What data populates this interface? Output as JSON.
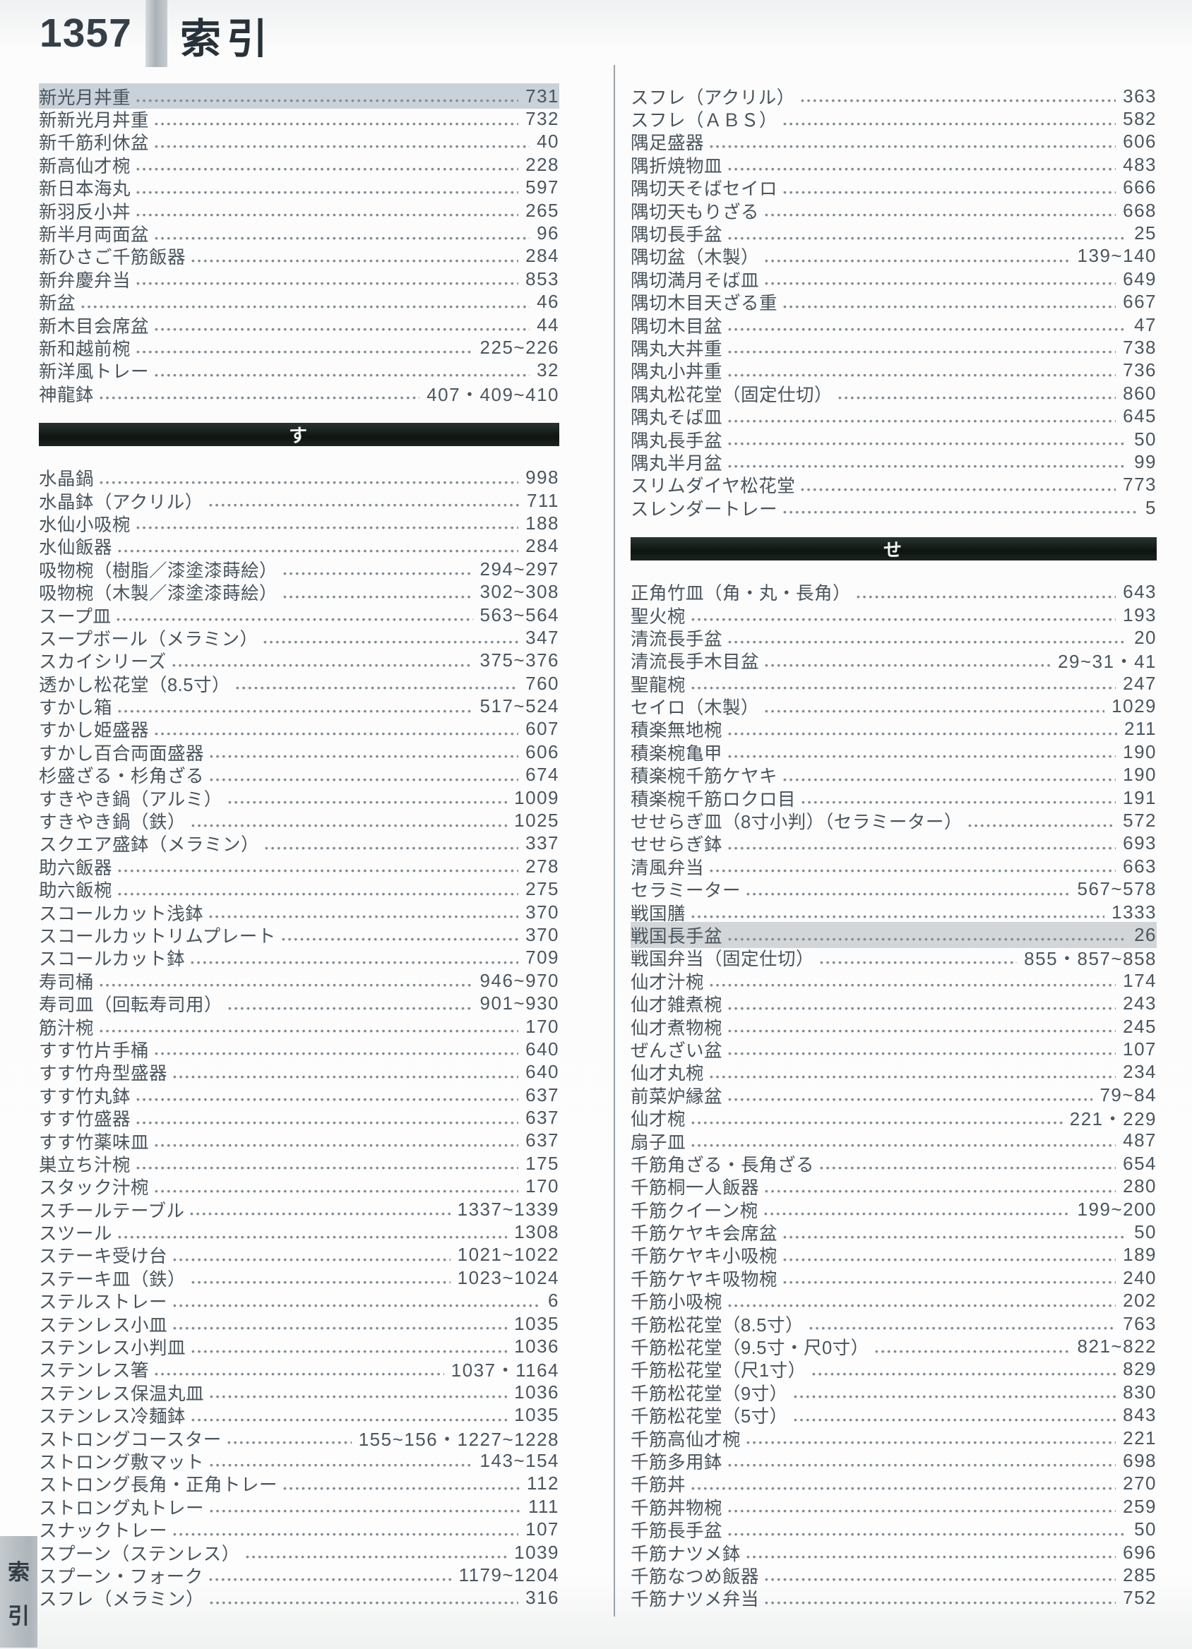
{
  "page": {
    "number": "1357",
    "title": "索引"
  },
  "side_tab": {
    "chars": [
      "索",
      "引"
    ]
  },
  "colors": {
    "text": "#49545d",
    "section_bar": "#141c17",
    "highlight_blue": "#c9d2d9",
    "highlight_gray": "#d3d6d8",
    "tab_gray": "#b4bcc1"
  },
  "columns": [
    {
      "rows": [
        {
          "type": "entry",
          "term": "新光月丼重",
          "pages": "731",
          "highlight": "blue"
        },
        {
          "type": "entry",
          "term": "新新光月丼重",
          "pages": "732"
        },
        {
          "type": "entry",
          "term": "新千筋利休盆",
          "pages": "40"
        },
        {
          "type": "entry",
          "term": "新高仙才椀",
          "pages": "228"
        },
        {
          "type": "entry",
          "term": "新日本海丸",
          "pages": "597"
        },
        {
          "type": "entry",
          "term": "新羽反小丼",
          "pages": "265"
        },
        {
          "type": "entry",
          "term": "新半月両面盆",
          "pages": "96"
        },
        {
          "type": "entry",
          "term": "新ひさご千筋飯器",
          "pages": "284"
        },
        {
          "type": "entry",
          "term": "新弁慶弁当",
          "pages": "853"
        },
        {
          "type": "entry",
          "term": "新盆",
          "pages": "46"
        },
        {
          "type": "entry",
          "term": "新木目会席盆",
          "pages": "44"
        },
        {
          "type": "entry",
          "term": "新和越前椀",
          "pages": "225~226"
        },
        {
          "type": "entry",
          "term": "新洋風トレー",
          "pages": "32"
        },
        {
          "type": "entry",
          "term": "神龍鉢",
          "pages": "407・409~410"
        },
        {
          "type": "section",
          "label": "す",
          "id": "su"
        },
        {
          "type": "entry",
          "term": "水晶鍋",
          "pages": "998"
        },
        {
          "type": "entry",
          "term": "水晶鉢（アクリル）",
          "pages": "711"
        },
        {
          "type": "entry",
          "term": "水仙小吸椀",
          "pages": "188"
        },
        {
          "type": "entry",
          "term": "水仙飯器",
          "pages": "284"
        },
        {
          "type": "entry",
          "term": "吸物椀（樹脂／漆塗漆蒔絵）",
          "pages": "294~297"
        },
        {
          "type": "entry",
          "term": "吸物椀（木製／漆塗漆蒔絵）",
          "pages": "302~308"
        },
        {
          "type": "entry",
          "term": "スープ皿",
          "pages": "563~564"
        },
        {
          "type": "entry",
          "term": "スープボール（メラミン）",
          "pages": "347"
        },
        {
          "type": "entry",
          "term": "スカイシリーズ",
          "pages": "375~376"
        },
        {
          "type": "entry",
          "term": "透かし松花堂（8.5寸）",
          "pages": "760"
        },
        {
          "type": "entry",
          "term": "すかし箱",
          "pages": "517~524"
        },
        {
          "type": "entry",
          "term": "すかし姫盛器",
          "pages": "607"
        },
        {
          "type": "entry",
          "term": "すかし百合両面盛器",
          "pages": "606"
        },
        {
          "type": "entry",
          "term": "杉盛ざる・杉角ざる",
          "pages": "674"
        },
        {
          "type": "entry",
          "term": "すきやき鍋（アルミ）",
          "pages": "1009"
        },
        {
          "type": "entry",
          "term": "すきやき鍋（鉄）",
          "pages": "1025"
        },
        {
          "type": "entry",
          "term": "スクエア盛鉢（メラミン）",
          "pages": "337"
        },
        {
          "type": "entry",
          "term": "助六飯器",
          "pages": "278"
        },
        {
          "type": "entry",
          "term": "助六飯椀",
          "pages": "275"
        },
        {
          "type": "entry",
          "term": "スコールカット浅鉢",
          "pages": "370"
        },
        {
          "type": "entry",
          "term": "スコールカットリムプレート",
          "pages": "370"
        },
        {
          "type": "entry",
          "term": "スコールカット鉢",
          "pages": "709"
        },
        {
          "type": "entry",
          "term": "寿司桶",
          "pages": "946~970"
        },
        {
          "type": "entry",
          "term": "寿司皿（回転寿司用）",
          "pages": "901~930"
        },
        {
          "type": "entry",
          "term": "筋汁椀",
          "pages": "170"
        },
        {
          "type": "entry",
          "term": "すす竹片手桶",
          "pages": "640"
        },
        {
          "type": "entry",
          "term": "すす竹舟型盛器",
          "pages": "640"
        },
        {
          "type": "entry",
          "term": "すす竹丸鉢",
          "pages": "637"
        },
        {
          "type": "entry",
          "term": "すす竹盛器",
          "pages": "637"
        },
        {
          "type": "entry",
          "term": "すす竹薬味皿",
          "pages": "637"
        },
        {
          "type": "entry",
          "term": "巣立ち汁椀",
          "pages": "175"
        },
        {
          "type": "entry",
          "term": "スタック汁椀",
          "pages": "170"
        },
        {
          "type": "entry",
          "term": "スチールテーブル",
          "pages": "1337~1339"
        },
        {
          "type": "entry",
          "term": "スツール",
          "pages": "1308"
        },
        {
          "type": "entry",
          "term": "ステーキ受け台",
          "pages": "1021~1022"
        },
        {
          "type": "entry",
          "term": "ステーキ皿（鉄）",
          "pages": "1023~1024"
        },
        {
          "type": "entry",
          "term": "ステルストレー",
          "pages": "6"
        },
        {
          "type": "entry",
          "term": "ステンレス小皿",
          "pages": "1035"
        },
        {
          "type": "entry",
          "term": "ステンレス小判皿",
          "pages": "1036"
        },
        {
          "type": "entry",
          "term": "ステンレス箸",
          "pages": "1037・1164"
        },
        {
          "type": "entry",
          "term": "ステンレス保温丸皿",
          "pages": "1036"
        },
        {
          "type": "entry",
          "term": "ステンレス冷麺鉢",
          "pages": "1035"
        },
        {
          "type": "entry",
          "term": "ストロングコースター",
          "pages": "155~156・1227~1228"
        },
        {
          "type": "entry",
          "term": "ストロング敷マット",
          "pages": "143~154"
        },
        {
          "type": "entry",
          "term": "ストロング長角・正角トレー",
          "pages": "112"
        },
        {
          "type": "entry",
          "term": "ストロング丸トレー",
          "pages": "111"
        },
        {
          "type": "entry",
          "term": "スナックトレー",
          "pages": "107"
        },
        {
          "type": "entry",
          "term": "スプーン（ステンレス）",
          "pages": "1039"
        },
        {
          "type": "entry",
          "term": "スプーン・フォーク",
          "pages": "1179~1204"
        },
        {
          "type": "entry",
          "term": "スフレ（メラミン）",
          "pages": "316"
        }
      ]
    },
    {
      "rows": [
        {
          "type": "entry",
          "term": "スフレ（アクリル）",
          "pages": "363"
        },
        {
          "type": "entry",
          "term": "スフレ（ＡＢＳ）",
          "pages": "582"
        },
        {
          "type": "entry",
          "term": "隅足盛器",
          "pages": "606"
        },
        {
          "type": "entry",
          "term": "隅折焼物皿",
          "pages": "483"
        },
        {
          "type": "entry",
          "term": "隅切天そばセイロ",
          "pages": "666"
        },
        {
          "type": "entry",
          "term": "隅切天もりざる",
          "pages": "668"
        },
        {
          "type": "entry",
          "term": "隅切長手盆",
          "pages": "25"
        },
        {
          "type": "entry",
          "term": "隅切盆（木製）",
          "pages": "139~140"
        },
        {
          "type": "entry",
          "term": "隅切満月そば皿",
          "pages": "649"
        },
        {
          "type": "entry",
          "term": "隅切木目天ざる重",
          "pages": "667"
        },
        {
          "type": "entry",
          "term": "隅切木目盆",
          "pages": "47"
        },
        {
          "type": "entry",
          "term": "隅丸大丼重",
          "pages": "738"
        },
        {
          "type": "entry",
          "term": "隅丸小丼重",
          "pages": "736"
        },
        {
          "type": "entry",
          "term": "隅丸松花堂（固定仕切）",
          "pages": "860"
        },
        {
          "type": "entry",
          "term": "隅丸そば皿",
          "pages": "645"
        },
        {
          "type": "entry",
          "term": "隅丸長手盆",
          "pages": "50"
        },
        {
          "type": "entry",
          "term": "隅丸半月盆",
          "pages": "99"
        },
        {
          "type": "entry",
          "term": "スリムダイヤ松花堂",
          "pages": "773"
        },
        {
          "type": "entry",
          "term": "スレンダートレー",
          "pages": "5"
        },
        {
          "type": "section",
          "label": "せ",
          "id": "se"
        },
        {
          "type": "entry",
          "term": "正角竹皿（角・丸・長角）",
          "pages": "643"
        },
        {
          "type": "entry",
          "term": "聖火椀",
          "pages": "193"
        },
        {
          "type": "entry",
          "term": "清流長手盆",
          "pages": "20"
        },
        {
          "type": "entry",
          "term": "清流長手木目盆",
          "pages": "29~31・41"
        },
        {
          "type": "entry",
          "term": "聖龍椀",
          "pages": "247"
        },
        {
          "type": "entry",
          "term": "セイロ（木製）",
          "pages": "1029"
        },
        {
          "type": "entry",
          "term": "積楽無地椀",
          "pages": "211"
        },
        {
          "type": "entry",
          "term": "積楽椀亀甲",
          "pages": "190"
        },
        {
          "type": "entry",
          "term": "積楽椀千筋ケヤキ",
          "pages": "190"
        },
        {
          "type": "entry",
          "term": "積楽椀千筋ロクロ目",
          "pages": "191"
        },
        {
          "type": "entry",
          "term": "せせらぎ皿（8寸小判）（セラミーター）",
          "pages": "572"
        },
        {
          "type": "entry",
          "term": "せせらぎ鉢",
          "pages": "693"
        },
        {
          "type": "entry",
          "term": "清風弁当",
          "pages": "663"
        },
        {
          "type": "entry",
          "term": "セラミーター",
          "pages": "567~578"
        },
        {
          "type": "entry",
          "term": "戦国膳",
          "pages": "1333"
        },
        {
          "type": "entry",
          "term": "戦国長手盆",
          "pages": "26",
          "highlight": "gray"
        },
        {
          "type": "entry",
          "term": "戦国弁当（固定仕切）",
          "pages": "855・857~858"
        },
        {
          "type": "entry",
          "term": "仙才汁椀",
          "pages": "174"
        },
        {
          "type": "entry",
          "term": "仙才雑煮椀",
          "pages": "243"
        },
        {
          "type": "entry",
          "term": "仙才煮物椀",
          "pages": "245"
        },
        {
          "type": "entry",
          "term": "ぜんざい盆",
          "pages": "107"
        },
        {
          "type": "entry",
          "term": "仙才丸椀",
          "pages": "234"
        },
        {
          "type": "entry",
          "term": "前菜炉縁盆",
          "pages": "79~84"
        },
        {
          "type": "entry",
          "term": "仙才椀",
          "pages": "221・229"
        },
        {
          "type": "entry",
          "term": "扇子皿",
          "pages": "487"
        },
        {
          "type": "entry",
          "term": "千筋角ざる・長角ざる",
          "pages": "654"
        },
        {
          "type": "entry",
          "term": "千筋桐一人飯器",
          "pages": "280"
        },
        {
          "type": "entry",
          "term": "千筋クイーン椀",
          "pages": "199~200"
        },
        {
          "type": "entry",
          "term": "千筋ケヤキ会席盆",
          "pages": "50"
        },
        {
          "type": "entry",
          "term": "千筋ケヤキ小吸椀",
          "pages": "189"
        },
        {
          "type": "entry",
          "term": "千筋ケヤキ吸物椀",
          "pages": "240"
        },
        {
          "type": "entry",
          "term": "千筋小吸椀",
          "pages": "202"
        },
        {
          "type": "entry",
          "term": "千筋松花堂（8.5寸）",
          "pages": "763"
        },
        {
          "type": "entry",
          "term": "千筋松花堂（9.5寸・尺0寸）",
          "pages": "821~822"
        },
        {
          "type": "entry",
          "term": "千筋松花堂（尺1寸）",
          "pages": "829"
        },
        {
          "type": "entry",
          "term": "千筋松花堂（9寸）",
          "pages": "830"
        },
        {
          "type": "entry",
          "term": "千筋松花堂（5寸）",
          "pages": "843"
        },
        {
          "type": "entry",
          "term": "千筋高仙才椀",
          "pages": "221"
        },
        {
          "type": "entry",
          "term": "千筋多用鉢",
          "pages": "698"
        },
        {
          "type": "entry",
          "term": "千筋丼",
          "pages": "270"
        },
        {
          "type": "entry",
          "term": "千筋丼物椀",
          "pages": "259"
        },
        {
          "type": "entry",
          "term": "千筋長手盆",
          "pages": "50"
        },
        {
          "type": "entry",
          "term": "千筋ナツメ鉢",
          "pages": "696"
        },
        {
          "type": "entry",
          "term": "千筋なつめ飯器",
          "pages": "285"
        },
        {
          "type": "entry",
          "term": "千筋ナツメ弁当",
          "pages": "752"
        }
      ]
    }
  ]
}
